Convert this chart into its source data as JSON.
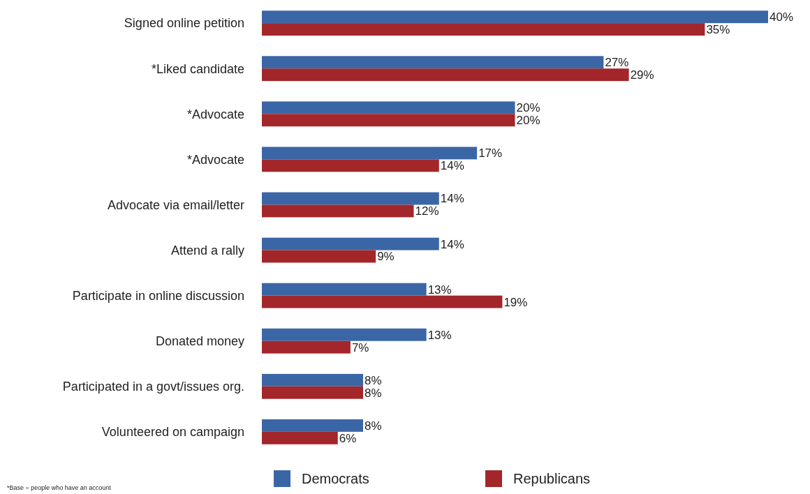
{
  "chart_data": {
    "type": "bar",
    "orientation": "horizontal",
    "categories": [
      "Signed online petition",
      "*Liked candidate",
      "*Advocate",
      "*Advocate",
      "Advocate via email/letter",
      "Attend a rally",
      "Participate in online discussion",
      "Donated money",
      "Participated in a govt/issues org.",
      "Volunteered on campaign"
    ],
    "series": [
      {
        "name": "Democrats",
        "color": "#3b66a6",
        "values": [
          40,
          27,
          20,
          17,
          14,
          14,
          13,
          13,
          8,
          8
        ],
        "value_labels": [
          "40%",
          "27%",
          "20%",
          "17%",
          "14%",
          "14%",
          "13%",
          "13%",
          "8%",
          "8%"
        ]
      },
      {
        "name": "Republicans",
        "color": "#a3262a",
        "values": [
          35,
          29,
          20,
          14,
          12,
          9,
          19,
          7,
          8,
          6
        ],
        "value_labels": [
          "35%",
          "29%",
          "20%",
          "14%",
          "12%",
          "9%",
          "19%",
          "7%",
          "8%",
          "6%"
        ]
      }
    ],
    "legend": "bottom",
    "annotations": [
      "*Base = people who have an account"
    ]
  }
}
